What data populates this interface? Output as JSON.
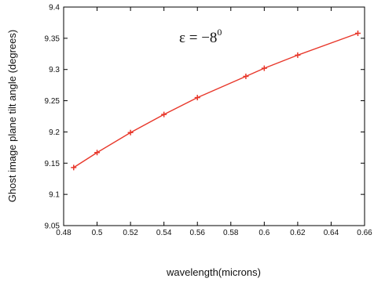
{
  "chart_data": {
    "type": "line",
    "xlabel": "wavelength(microns)",
    "ylabel": "Ghost image plane tilt angle (degrees)",
    "xlim": [
      0.48,
      0.66
    ],
    "ylim": [
      9.05,
      9.4
    ],
    "xticks": [
      "0.48",
      "0.5",
      "0.52",
      "0.54",
      "0.56",
      "0.58",
      "0.6",
      "0.62",
      "0.64",
      "0.66"
    ],
    "yticks": [
      "9.05",
      "9.1",
      "9.15",
      "9.2",
      "9.25",
      "9.3",
      "9.35",
      "9.4"
    ],
    "annotation": {
      "base": "ε = −8",
      "sup": "0"
    },
    "grid": false,
    "series": [
      {
        "color": "#e8372a",
        "marker": "plus",
        "x": [
          0.486,
          0.5,
          0.52,
          0.54,
          0.56,
          0.589,
          0.6,
          0.62,
          0.656
        ],
        "y": [
          9.143,
          9.167,
          9.199,
          9.228,
          9.255,
          9.289,
          9.302,
          9.323,
          9.358
        ]
      }
    ]
  }
}
